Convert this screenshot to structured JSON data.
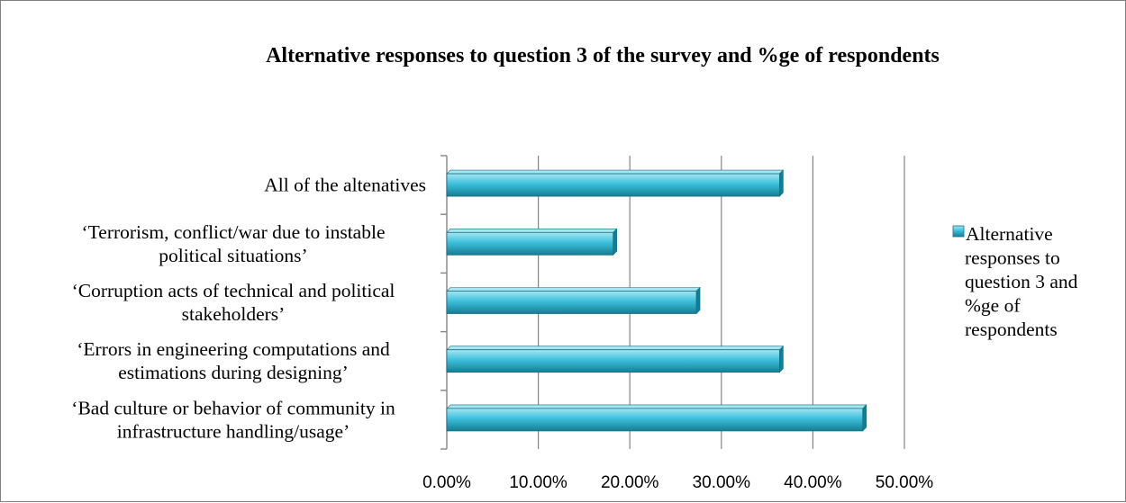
{
  "chart_data": {
    "type": "bar",
    "orientation": "horizontal",
    "title": "Alternative responses to question 3 of the survey and %ge of respondents",
    "categories": [
      [
        "All of the altenatives"
      ],
      [
        "‘Terrorism, conflict/war due to instable",
        "political situations’"
      ],
      [
        "‘Corruption acts of technical and political",
        "stakeholders’"
      ],
      [
        "‘Errors in engineering computations and",
        "estimations during designing’"
      ],
      [
        "‘Bad culture or behavior of community in",
        "infrastructure handling/usage’"
      ]
    ],
    "series": [
      {
        "name": "Alternative responses to question 3 and %ge of respondents",
        "values": [
          0.3636,
          0.1818,
          0.2727,
          0.3636,
          0.4545
        ]
      }
    ],
    "xlim": [
      0,
      0.5
    ],
    "x_ticks": [
      0,
      0.1,
      0.2,
      0.3,
      0.4,
      0.5
    ],
    "x_tick_labels": [
      "0.00%",
      "10.00%",
      "20.00%",
      "30.00%",
      "40.00%",
      "50.00%"
    ],
    "grid": "vertical major gridlines",
    "legend": {
      "position": "right",
      "lines": [
        "Alternative",
        "responses to",
        "question 3 and",
        "%ge of",
        "respondents"
      ]
    },
    "colors": {
      "bar_fill": "#3cc0dc",
      "bar_light": "#a5e6f3",
      "bar_dark": "#157d93",
      "bar_edge": "#1b6f82",
      "gridline": "#868686",
      "axis": "#868686"
    }
  }
}
